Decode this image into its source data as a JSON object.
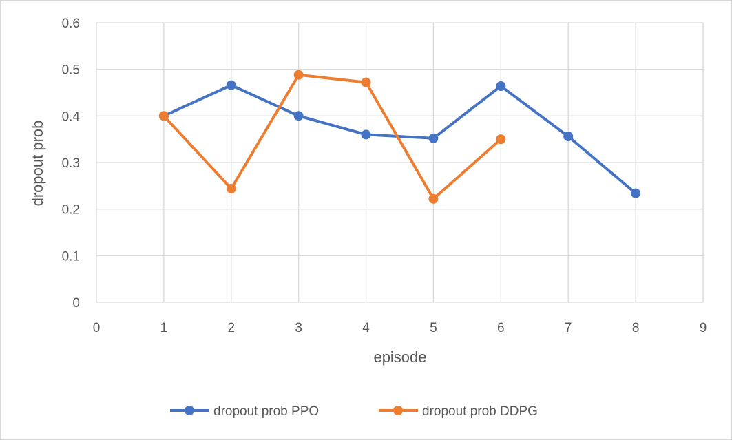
{
  "chart_data": {
    "type": "scatter",
    "title": "",
    "xlabel": "episode",
    "ylabel": "dropout prob",
    "xlim": [
      0,
      9
    ],
    "ylim": [
      0,
      0.6
    ],
    "xticks": [
      "0",
      "1",
      "2",
      "3",
      "4",
      "5",
      "6",
      "7",
      "8",
      "9"
    ],
    "yticks": [
      "0",
      "0.1",
      "0.2",
      "0.3",
      "0.4",
      "0.5",
      "0.6"
    ],
    "grid": true,
    "legend_position": "bottom",
    "series": [
      {
        "name": "dropout prob PPO",
        "color": "#4472C4",
        "x": [
          1,
          2,
          3,
          4,
          5,
          6,
          7,
          8
        ],
        "y": [
          0.4,
          0.466,
          0.4,
          0.36,
          0.352,
          0.464,
          0.356,
          0.234
        ]
      },
      {
        "name": "dropout prob DDPG",
        "color": "#ED7D31",
        "x": [
          1,
          2,
          3,
          4,
          5,
          6
        ],
        "y": [
          0.4,
          0.244,
          0.488,
          0.472,
          0.222,
          0.35
        ]
      }
    ]
  }
}
